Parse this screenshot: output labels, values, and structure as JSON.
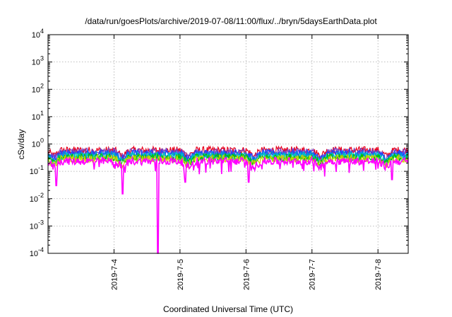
{
  "chart_data": {
    "type": "line",
    "title": "/data/run/goesPlots/archive/2019-07-08/11:00/flux/../bryn/5daysEarthData.plot",
    "xlabel": "Coordinated Universal Time (UTC)",
    "ylabel": "cSv/day",
    "yscale": "log",
    "ylim": [
      0.0001,
      10000
    ],
    "xlim": [
      "2019-07-03 00:00",
      "2019-07-08 11:00"
    ],
    "x_ticks": [
      "2019-7-4",
      "2019-7-5",
      "2019-7-6",
      "2019-7-7",
      "2019-7-8"
    ],
    "y_ticks": [
      {
        "base": "10",
        "exp": "-4"
      },
      {
        "base": "10",
        "exp": "-3"
      },
      {
        "base": "10",
        "exp": "-2"
      },
      {
        "base": "10",
        "exp": "-1"
      },
      {
        "base": "10",
        "exp": "0"
      },
      {
        "base": "10",
        "exp": "1"
      },
      {
        "base": "10",
        "exp": "2"
      },
      {
        "base": "10",
        "exp": "3"
      },
      {
        "base": "10",
        "exp": "4"
      }
    ],
    "grid": true,
    "series": [
      {
        "color": "#e8001c",
        "level": 0.55
      },
      {
        "color": "#7f3fbf",
        "level": 0.48
      },
      {
        "color": "#1f3fff",
        "level": 0.42
      },
      {
        "color": "#0090e0",
        "level": 0.37
      },
      {
        "color": "#00c8c0",
        "level": 0.33
      },
      {
        "color": "#00c000",
        "level": 0.3
      },
      {
        "color": "#d0d000",
        "level": 0.27
      },
      {
        "color": "#ff00ff",
        "level": 0.22
      }
    ],
    "features": {
      "diurnal_dips": [
        "2019-07-03 02:00",
        "2019-07-04 03:00",
        "2019-07-05 03:00",
        "2019-07-06 03:00",
        "2019-07-07 03:00",
        "2019-07-08 03:00"
      ],
      "spikes": [
        {
          "time": "2019-07-03 03:00",
          "value": 0.03
        },
        {
          "time": "2019-07-04 03:00",
          "value": 0.015
        },
        {
          "time": "2019-07-04 16:00",
          "value": 0.0001
        },
        {
          "time": "2019-07-05 02:00",
          "value": 0.04
        },
        {
          "time": "2019-07-06 01:00",
          "value": 0.04
        },
        {
          "time": "2019-07-08 05:00",
          "value": 0.05
        }
      ]
    }
  }
}
